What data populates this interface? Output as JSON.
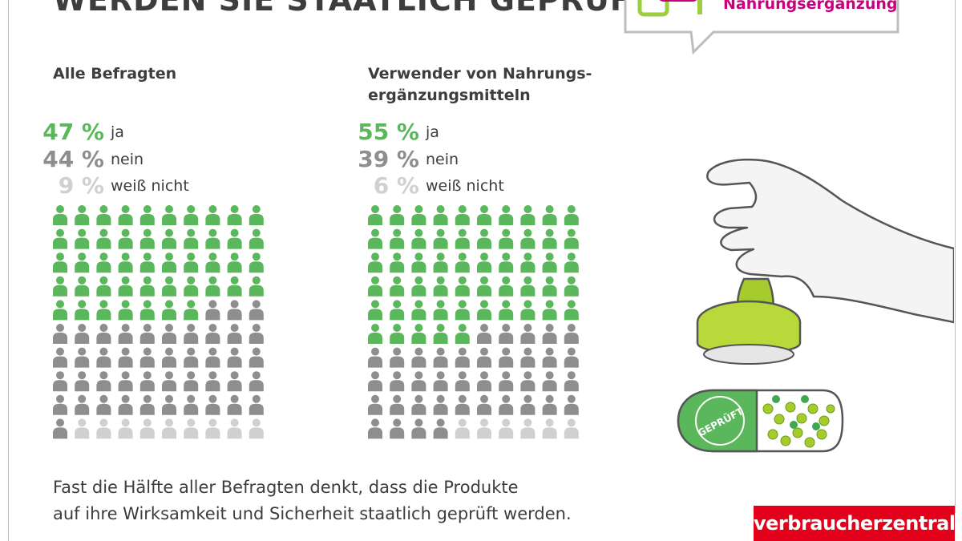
{
  "headline": "WERDEN SIE STAATLICH GEPRÜFT?",
  "badge_text": "Nahrungsergänzung",
  "colors": {
    "ja": "#5bb75b",
    "nein": "#8e8e8e",
    "weiss_nicht": "#d0d0d0",
    "brand_red": "#e2001a",
    "accent_magenta": "#c8007d"
  },
  "chart_data": [
    {
      "type": "icon-array",
      "title": "Alle Befragten",
      "categories": [
        "ja",
        "nein",
        "weiß nicht"
      ],
      "values": [
        47,
        44,
        9
      ],
      "unit": "%",
      "total_icons": 100
    },
    {
      "type": "icon-array",
      "title": "Verwender von Nahrungs-ergänzungsmitteln",
      "title_lines": [
        "Verwender von Nahrungs-",
        "ergänzungsmitteln"
      ],
      "categories": [
        "ja",
        "nein",
        "weiß nicht"
      ],
      "values": [
        55,
        39,
        6
      ],
      "unit": "%",
      "total_icons": 100
    }
  ],
  "stamp_text": "GEPRÜFT",
  "caption_lines": [
    "Fast die Hälfte aller Befragten denkt, dass die Produkte",
    "auf  ihre  Wirksamkeit und Sicherheit staatlich geprüft werden."
  ],
  "logo": "verbraucherzentrale"
}
